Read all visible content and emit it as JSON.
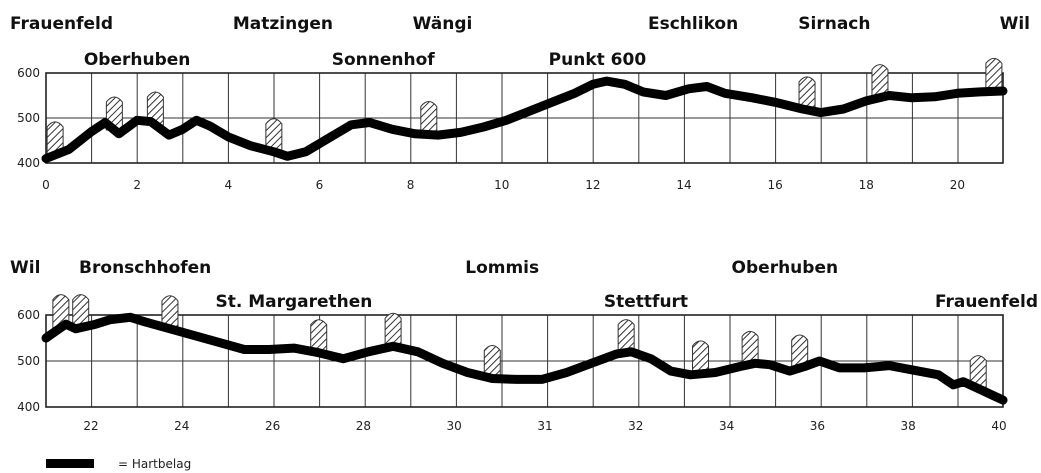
{
  "chart_data": [
    {
      "type": "line",
      "name": "Frauenfeld–Wil",
      "xlim": [
        0,
        21
      ],
      "ylim": [
        400,
        600
      ],
      "x_ticks": [
        "0",
        "2",
        "4",
        "6",
        "8",
        "10",
        "12",
        "14",
        "16",
        "18",
        "20"
      ],
      "y_ticks": [
        "400",
        "500",
        "600"
      ],
      "places_top": [
        {
          "label": "Frauenfeld",
          "x": 0
        },
        {
          "label": "Matzingen",
          "x": 5.2
        },
        {
          "label": "Wängi",
          "x": 8.7
        },
        {
          "label": "Eschlikon",
          "x": 14.2
        },
        {
          "label": "Sirnach",
          "x": 17.3
        },
        {
          "label": "Wil",
          "x": 21
        }
      ],
      "places_bottom": [
        {
          "label": "Oberhuben",
          "x": 2
        },
        {
          "label": "Sonnenhof",
          "x": 7.4
        },
        {
          "label": "Punkt 600",
          "x": 12.1
        }
      ],
      "elevation": [
        [
          0,
          410
        ],
        [
          0.5,
          430
        ],
        [
          1.0,
          470
        ],
        [
          1.3,
          490
        ],
        [
          1.6,
          465
        ],
        [
          2.0,
          495
        ],
        [
          2.3,
          492
        ],
        [
          2.7,
          462
        ],
        [
          3.0,
          475
        ],
        [
          3.3,
          495
        ],
        [
          3.6,
          482
        ],
        [
          4.0,
          458
        ],
        [
          4.5,
          438
        ],
        [
          5.0,
          425
        ],
        [
          5.3,
          415
        ],
        [
          5.7,
          425
        ],
        [
          6.2,
          455
        ],
        [
          6.7,
          485
        ],
        [
          7.1,
          490
        ],
        [
          7.6,
          475
        ],
        [
          8.1,
          465
        ],
        [
          8.6,
          462
        ],
        [
          9.1,
          468
        ],
        [
          9.6,
          480
        ],
        [
          10.1,
          495
        ],
        [
          10.6,
          515
        ],
        [
          11.1,
          535
        ],
        [
          11.6,
          555
        ],
        [
          12.0,
          575
        ],
        [
          12.3,
          582
        ],
        [
          12.7,
          575
        ],
        [
          13.1,
          558
        ],
        [
          13.6,
          550
        ],
        [
          14.1,
          565
        ],
        [
          14.5,
          570
        ],
        [
          14.9,
          555
        ],
        [
          15.5,
          545
        ],
        [
          16.0,
          535
        ],
        [
          16.6,
          520
        ],
        [
          17.0,
          512
        ],
        [
          17.5,
          520
        ],
        [
          18.0,
          538
        ],
        [
          18.5,
          550
        ],
        [
          19.0,
          545
        ],
        [
          19.5,
          547
        ],
        [
          20.0,
          555
        ],
        [
          20.5,
          558
        ],
        [
          21.0,
          560
        ]
      ]
    },
    {
      "type": "line",
      "name": "Wil–Frauenfeld",
      "xlim": [
        21,
        40.3
      ],
      "ylim": [
        400,
        600
      ],
      "x_ticks": [
        "22",
        "24",
        "26",
        "28",
        "30",
        "31",
        "32",
        "34",
        "36",
        "38",
        "40"
      ],
      "y_ticks": [
        "400",
        "500",
        "600"
      ],
      "places_top": [
        {
          "label": "Wil",
          "x": 21
        },
        {
          "label": "Bronschhofen",
          "x": 23
        },
        {
          "label": "Lommis",
          "x": 30.2
        },
        {
          "label": "Oberhuben",
          "x": 35.9
        }
      ],
      "places_bottom": [
        {
          "label": "St. Margarethen",
          "x": 26
        },
        {
          "label": "Stettfurt",
          "x": 33.1
        },
        {
          "label": "Frauenfeld",
          "x": 39.3
        }
      ],
      "elevation": [
        [
          21.0,
          550
        ],
        [
          21.2,
          565
        ],
        [
          21.4,
          580
        ],
        [
          21.6,
          570
        ],
        [
          22.0,
          580
        ],
        [
          22.3,
          590
        ],
        [
          22.7,
          595
        ],
        [
          23.0,
          585
        ],
        [
          23.5,
          570
        ],
        [
          24.0,
          555
        ],
        [
          24.5,
          540
        ],
        [
          25.0,
          525
        ],
        [
          25.5,
          525
        ],
        [
          26.0,
          528
        ],
        [
          26.5,
          518
        ],
        [
          27.0,
          505
        ],
        [
          27.5,
          520
        ],
        [
          28.0,
          532
        ],
        [
          28.5,
          520
        ],
        [
          29.0,
          495
        ],
        [
          29.5,
          475
        ],
        [
          30.0,
          462
        ],
        [
          30.5,
          460
        ],
        [
          31.0,
          460
        ],
        [
          31.5,
          475
        ],
        [
          32.0,
          495
        ],
        [
          32.5,
          515
        ],
        [
          32.8,
          520
        ],
        [
          33.2,
          505
        ],
        [
          33.6,
          478
        ],
        [
          34.0,
          470
        ],
        [
          34.5,
          475
        ],
        [
          35.0,
          488
        ],
        [
          35.3,
          495
        ],
        [
          35.6,
          492
        ],
        [
          36.0,
          478
        ],
        [
          36.3,
          488
        ],
        [
          36.6,
          500
        ],
        [
          37.0,
          485
        ],
        [
          37.5,
          485
        ],
        [
          38.0,
          490
        ],
        [
          38.5,
          480
        ],
        [
          39.0,
          470
        ],
        [
          39.3,
          448
        ],
        [
          39.5,
          455
        ],
        [
          39.8,
          440
        ],
        [
          40.1,
          425
        ],
        [
          40.3,
          415
        ]
      ]
    }
  ],
  "legend": {
    "label": "= Hartbelag"
  }
}
